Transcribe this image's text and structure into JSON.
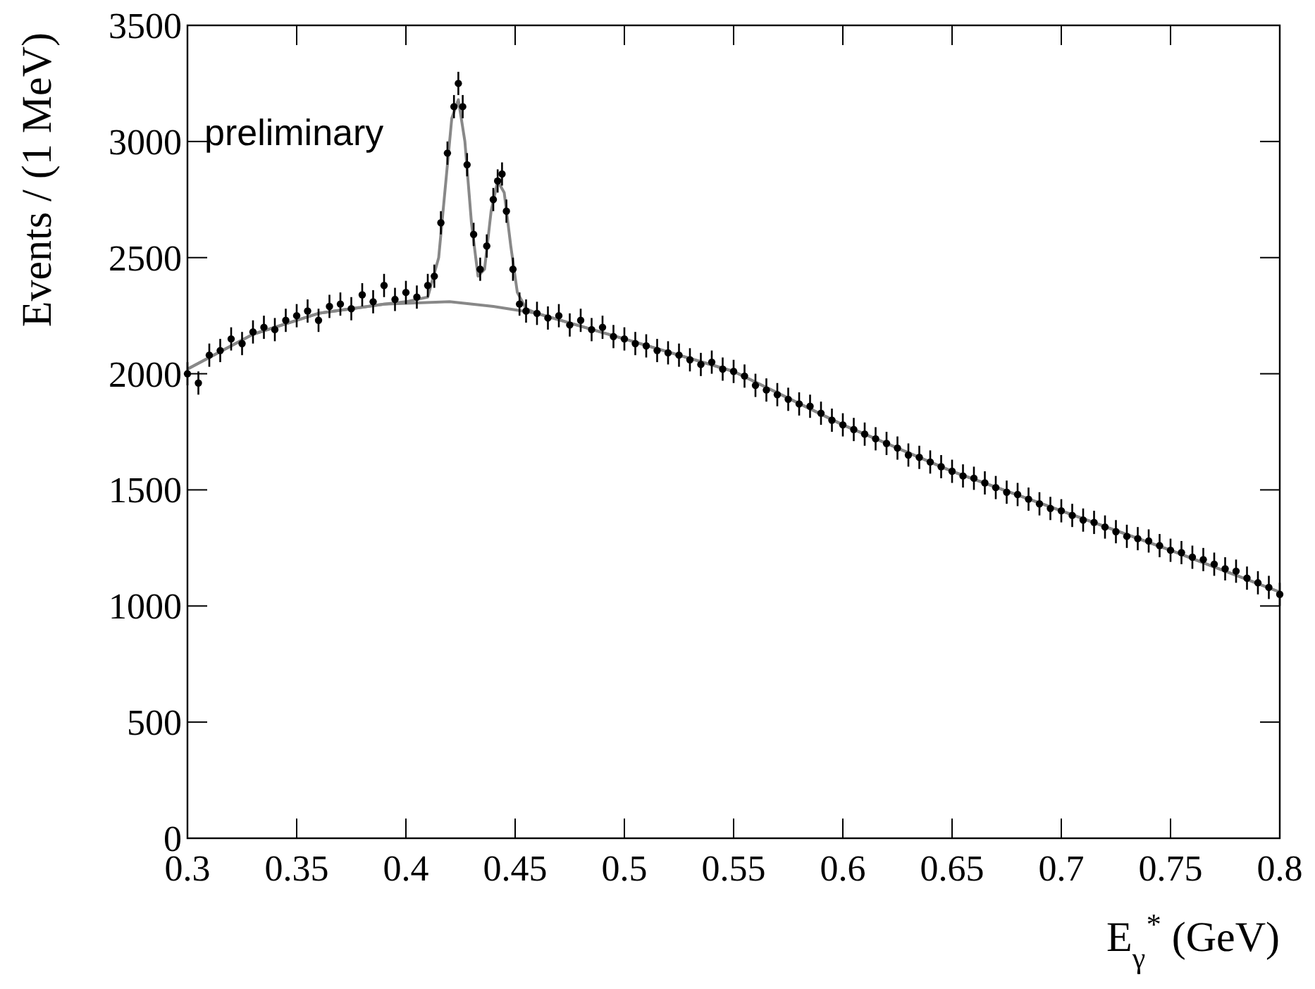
{
  "chart_data": {
    "type": "scatter",
    "xlabel": "E$_{γ}$$^{*}$ (GeV)",
    "ylabel": "Events / (1 MeV)",
    "annotations": [
      "preliminary"
    ],
    "xlim": [
      0.3,
      0.8
    ],
    "xticks": [
      0.3,
      0.35,
      0.4,
      0.45,
      0.5,
      0.55,
      0.6,
      0.65,
      0.7,
      0.75,
      0.8
    ],
    "ylim": [
      0,
      3500
    ],
    "yticks": [
      0,
      500,
      1000,
      1500,
      2000,
      2500,
      3000,
      3500
    ],
    "grid": false,
    "series": [
      {
        "color": "#000000",
        "marker": "circle",
        "x": [
          0.3,
          0.305,
          0.31,
          0.315,
          0.32,
          0.325,
          0.33,
          0.335,
          0.34,
          0.345,
          0.35,
          0.355,
          0.36,
          0.365,
          0.37,
          0.375,
          0.38,
          0.385,
          0.39,
          0.395,
          0.4,
          0.405,
          0.41,
          0.413,
          0.416,
          0.419,
          0.422,
          0.424,
          0.426,
          0.428,
          0.431,
          0.434,
          0.437,
          0.44,
          0.442,
          0.444,
          0.446,
          0.449,
          0.452,
          0.455,
          0.46,
          0.465,
          0.47,
          0.475,
          0.48,
          0.485,
          0.49,
          0.495,
          0.5,
          0.505,
          0.51,
          0.515,
          0.52,
          0.525,
          0.53,
          0.535,
          0.54,
          0.545,
          0.55,
          0.555,
          0.56,
          0.565,
          0.57,
          0.575,
          0.58,
          0.585,
          0.59,
          0.595,
          0.6,
          0.605,
          0.61,
          0.615,
          0.62,
          0.625,
          0.63,
          0.635,
          0.64,
          0.645,
          0.65,
          0.655,
          0.66,
          0.665,
          0.67,
          0.675,
          0.68,
          0.685,
          0.69,
          0.695,
          0.7,
          0.705,
          0.71,
          0.715,
          0.72,
          0.725,
          0.73,
          0.735,
          0.74,
          0.745,
          0.75,
          0.755,
          0.76,
          0.765,
          0.77,
          0.775,
          0.78,
          0.785,
          0.79,
          0.795,
          0.8
        ],
        "values": [
          2000,
          1960,
          2080,
          2100,
          2150,
          2130,
          2180,
          2200,
          2190,
          2230,
          2250,
          2270,
          2230,
          2290,
          2300,
          2280,
          2340,
          2310,
          2380,
          2320,
          2350,
          2330,
          2380,
          2420,
          2650,
          2950,
          3150,
          3250,
          3150,
          2900,
          2600,
          2450,
          2550,
          2750,
          2830,
          2860,
          2700,
          2450,
          2300,
          2270,
          2260,
          2240,
          2250,
          2210,
          2230,
          2190,
          2200,
          2160,
          2150,
          2130,
          2120,
          2100,
          2090,
          2080,
          2060,
          2040,
          2050,
          2020,
          2010,
          1990,
          1950,
          1930,
          1910,
          1890,
          1870,
          1860,
          1830,
          1800,
          1780,
          1760,
          1740,
          1720,
          1700,
          1680,
          1650,
          1640,
          1620,
          1600,
          1580,
          1560,
          1550,
          1530,
          1510,
          1490,
          1480,
          1460,
          1440,
          1420,
          1410,
          1390,
          1370,
          1360,
          1340,
          1320,
          1300,
          1290,
          1280,
          1260,
          1240,
          1230,
          1210,
          1200,
          1180,
          1160,
          1150,
          1120,
          1100,
          1080,
          1050
        ],
        "errors": [
          50,
          50,
          50,
          50,
          50,
          50,
          50,
          50,
          50,
          50,
          50,
          50,
          50,
          50,
          50,
          50,
          50,
          50,
          50,
          50,
          50,
          50,
          50,
          50,
          50,
          50,
          50,
          50,
          50,
          50,
          50,
          50,
          50,
          50,
          50,
          50,
          50,
          50,
          50,
          50,
          50,
          50,
          50,
          50,
          50,
          50,
          50,
          50,
          50,
          50,
          50,
          50,
          50,
          50,
          50,
          50,
          50,
          50,
          50,
          50,
          50,
          50,
          50,
          50,
          50,
          50,
          50,
          50,
          50,
          50,
          50,
          50,
          50,
          50,
          50,
          50,
          50,
          50,
          50,
          50,
          50,
          50,
          50,
          50,
          50,
          50,
          50,
          50,
          50,
          50,
          50,
          50,
          50,
          50,
          50,
          50,
          50,
          50,
          50,
          50,
          50,
          50,
          50,
          50,
          50,
          50,
          50,
          50,
          50
        ]
      },
      {
        "type": "line",
        "color": "#888888",
        "marker": "none",
        "x": [
          0.3,
          0.33,
          0.36,
          0.39,
          0.4,
          0.41,
          0.415,
          0.418,
          0.421,
          0.424,
          0.427,
          0.43,
          0.433,
          0.436,
          0.439,
          0.442,
          0.445,
          0.448,
          0.451,
          0.455,
          0.46,
          0.5,
          0.55,
          0.6,
          0.65,
          0.7,
          0.75,
          0.8
        ],
        "values": [
          2020,
          2170,
          2260,
          2300,
          2310,
          2330,
          2500,
          2800,
          3100,
          3180,
          3000,
          2650,
          2420,
          2450,
          2700,
          2830,
          2780,
          2550,
          2350,
          2280,
          2260,
          2150,
          2010,
          1780,
          1580,
          1410,
          1240,
          1060
        ]
      },
      {
        "type": "line",
        "color": "#888888",
        "marker": "none",
        "x": [
          0.3,
          0.33,
          0.36,
          0.39,
          0.42,
          0.44,
          0.46,
          0.5,
          0.55,
          0.6,
          0.65,
          0.7,
          0.75,
          0.8
        ],
        "values": [
          2020,
          2170,
          2260,
          2300,
          2310,
          2290,
          2260,
          2150,
          2010,
          1780,
          1580,
          1410,
          1240,
          1060
        ]
      }
    ]
  }
}
